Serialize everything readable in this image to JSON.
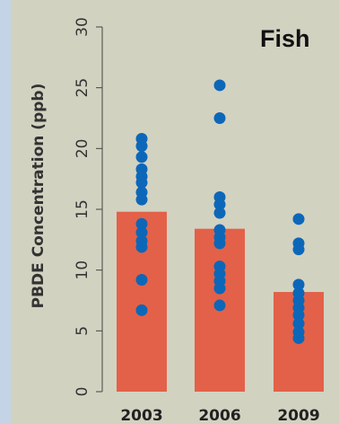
{
  "chart_data": {
    "type": "bar",
    "title": "Fish",
    "ylabel": "PBDE Concentration (ppb)",
    "xlabel": "",
    "ylim": [
      0,
      30
    ],
    "yticks": [
      0,
      5,
      10,
      15,
      20,
      25,
      30
    ],
    "categories": [
      "2003",
      "2006",
      "2009"
    ],
    "values": [
      14.8,
      13.4,
      8.2
    ],
    "points": [
      [
        20.8,
        20.2,
        19.3,
        18.3,
        17.7,
        17.2,
        16.4,
        15.8,
        13.8,
        13.1,
        12.4,
        11.9,
        9.2,
        6.7
      ],
      [
        25.2,
        22.5,
        16.0,
        15.4,
        14.7,
        13.3,
        12.7,
        12.2,
        10.3,
        9.7,
        9.1,
        8.5,
        7.1
      ],
      [
        14.2,
        12.2,
        11.7,
        8.8,
        8.1,
        7.5,
        6.9,
        6.3,
        5.6,
        4.9,
        4.4
      ]
    ],
    "colors": {
      "bar": "#e36148",
      "point": "#0d67b8",
      "background": "#d2d2c1"
    },
    "grid": false,
    "legend": "none"
  }
}
